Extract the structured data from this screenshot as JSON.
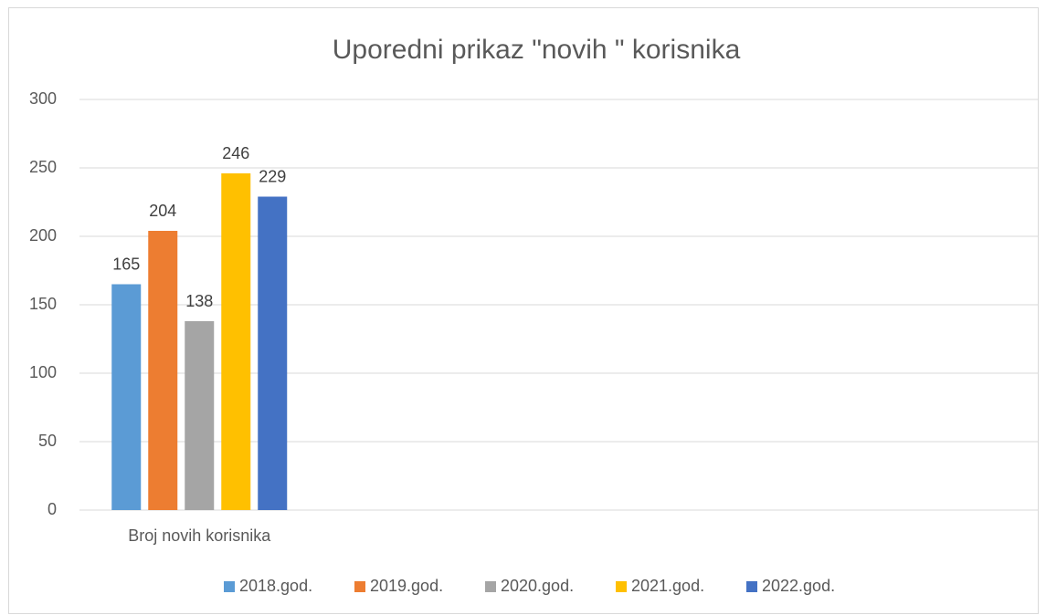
{
  "chart_data": {
    "type": "bar",
    "title": "Uporedni prikaz \"novih \" korisnika",
    "categories": [
      "Broj novih korisnika",
      null,
      null,
      null
    ],
    "series": [
      {
        "name": "2018.god.",
        "color": "#5b9bd5",
        "values": [
          165,
          null,
          null,
          null
        ]
      },
      {
        "name": "2019.god.",
        "color": "#ed7d31",
        "values": [
          204,
          null,
          null,
          null
        ]
      },
      {
        "name": "2020.god.",
        "color": "#a5a5a5",
        "values": [
          138,
          null,
          null,
          null
        ]
      },
      {
        "name": "2021.god.",
        "color": "#ffc000",
        "values": [
          246,
          null,
          null,
          null
        ]
      },
      {
        "name": "2022.god.",
        "color": "#4472c4",
        "values": [
          229,
          null,
          null,
          null
        ]
      }
    ],
    "ylim": [
      0,
      300
    ],
    "yticks": [
      0,
      50,
      100,
      150,
      200,
      250,
      300
    ],
    "grid": true,
    "legend": "bottom"
  }
}
